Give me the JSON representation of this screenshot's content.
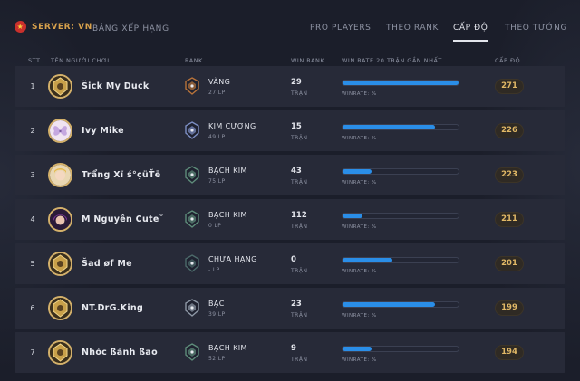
{
  "header": {
    "server_label": "SERVER: VN",
    "page_title": "BẢNG XẾP HẠNG",
    "tabs": [
      {
        "label": "PRO PLAYERS",
        "active": false
      },
      {
        "label": "THEO RANK",
        "active": false
      },
      {
        "label": "CẤP ĐỘ",
        "active": true
      },
      {
        "label": "THEO TƯỚNG",
        "active": false
      }
    ]
  },
  "columns": {
    "stt": "STT",
    "name": "TÊN NGƯỜI CHƠI",
    "rank": "RANK",
    "win_rank": "WIN RANK",
    "win_rate": "WIN RATE 20 TRẬN GẦN NHẤT",
    "level": "CẤP ĐỘ"
  },
  "rows": [
    {
      "stt": "1",
      "name": "Šick My Duck",
      "rank": "VÀNG",
      "lp": "27 LP",
      "wins": "29",
      "wins_unit": "TRẬN",
      "winrate_label": "WINRATE: %",
      "winrate_fill": 1.0,
      "level": "271",
      "avatar": "gold-frame",
      "emblem_color": "#b8733a"
    },
    {
      "stt": "2",
      "name": "Ivy Mike",
      "rank": "KIM CƯƠNG",
      "lp": "49 LP",
      "wins": "15",
      "wins_unit": "TRẬN",
      "winrate_label": "WINRATE: %",
      "winrate_fill": 0.8,
      "level": "226",
      "avatar": "butterfly",
      "emblem_color": "#7d8fc4"
    },
    {
      "stt": "3",
      "name": "Trẩ̃ng Xĩ ś°çüŤē",
      "rank": "BẠCH KIM",
      "lp": "75 LP",
      "wins": "43",
      "wins_unit": "TRẬN",
      "winrate_label": "WINRATE: %",
      "winrate_fill": 0.25,
      "level": "223",
      "avatar": "blonde-girl",
      "emblem_color": "#5e8c7a"
    },
    {
      "stt": "4",
      "name": "M Nguyên Cute˘",
      "rank": "BẠCH KIM",
      "lp": "0 LP",
      "wins": "112",
      "wins_unit": "TRẬN",
      "winrate_label": "WINRATE: %",
      "winrate_fill": 0.17,
      "level": "211",
      "avatar": "purple-hair",
      "emblem_color": "#5e8c7a"
    },
    {
      "stt": "5",
      "name": "Šad øf Me",
      "rank": "CHƯA HẠNG",
      "lp": "- LP",
      "wins": "0",
      "wins_unit": "TRẬN",
      "winrate_label": "WINRATE: %",
      "winrate_fill": 0.43,
      "level": "201",
      "avatar": "gold-frame",
      "emblem_color": "#4c6a6a"
    },
    {
      "stt": "6",
      "name": "NT.DrG.King",
      "rank": "BẠC",
      "lp": "39 LP",
      "wins": "23",
      "wins_unit": "TRẬN",
      "winrate_label": "WINRATE: %",
      "winrate_fill": 0.8,
      "level": "199",
      "avatar": "gold-frame",
      "emblem_color": "#8e98a6"
    },
    {
      "stt": "7",
      "name": "Nhóc ßánh ßao",
      "rank": "BẠCH KIM",
      "lp": "52 LP",
      "wins": "9",
      "wins_unit": "TRẬN",
      "winrate_label": "WINRATE: %",
      "winrate_fill": 0.25,
      "level": "194",
      "avatar": "gold-frame",
      "emblem_color": "#5e8c7a"
    }
  ]
}
